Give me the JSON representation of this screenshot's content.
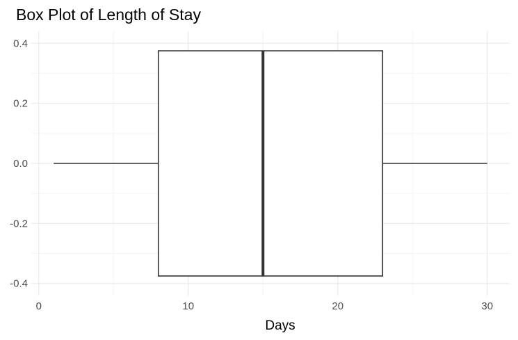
{
  "chart_data": {
    "type": "boxplot",
    "title": "Box Plot of Length of Stay",
    "xlabel": "Days",
    "ylabel": "",
    "xlim": [
      -0.5,
      31.5
    ],
    "ylim": [
      -0.4,
      0.4
    ],
    "x_ticks": [
      0,
      10,
      20,
      30
    ],
    "y_ticks": [
      -0.4,
      -0.2,
      0.0,
      0.2,
      0.4
    ],
    "y_tick_labels": [
      "-0.4",
      "-0.2",
      "0.0",
      "0.2",
      "0.4"
    ],
    "box": {
      "min": 1,
      "q1": 8,
      "median": 15,
      "q3": 23,
      "max": 30,
      "y_center": 0.0,
      "y_low": -0.375,
      "y_high": 0.375
    },
    "grid": true,
    "legend": "none",
    "colors": {
      "box_fill": "#ffffff",
      "box_stroke": "#333333",
      "grid_major": "#ebebeb",
      "grid_minor": "#f4f4f4",
      "tick_text": "#4d4d4d"
    }
  }
}
